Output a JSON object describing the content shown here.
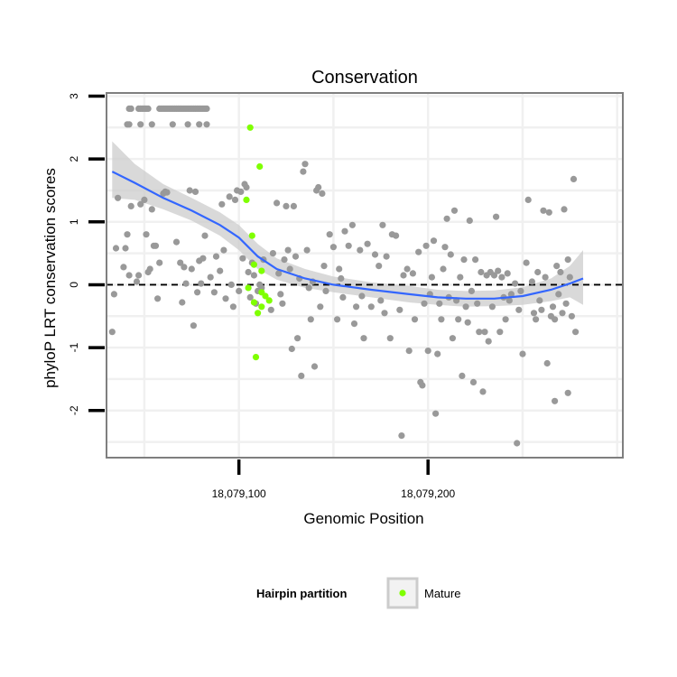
{
  "chart_data": {
    "type": "scatter",
    "title": "Conservation",
    "xlabel": "Genomic Position",
    "ylabel": "phyloP LRT conservation scores",
    "xlim": [
      18079030,
      18079303
    ],
    "ylim": [
      -2.75,
      3.05
    ],
    "x_ticks": [
      {
        "value": 18079100,
        "label": "18,079,100"
      },
      {
        "value": 18079200,
        "label": "18,079,200"
      }
    ],
    "y_ticks": [
      {
        "value": 3,
        "label": "3"
      },
      {
        "value": 2,
        "label": "2"
      },
      {
        "value": 1,
        "label": "1"
      },
      {
        "value": 0,
        "label": "0"
      },
      {
        "value": -1,
        "label": "-1"
      },
      {
        "value": -2,
        "label": "-2"
      }
    ],
    "reference_line": {
      "y": 0,
      "style": "dashed"
    },
    "colors": {
      "other": "#999999",
      "mature": "#7fff00",
      "smooth": "#3366ff",
      "ribbon": "#cccccc"
    },
    "legend": {
      "title": "Hairpin partition",
      "entries": [
        {
          "label": "Mature",
          "color": "#7fff00"
        }
      ]
    },
    "series": [
      {
        "name": "Other",
        "color": "#999999",
        "points": [
          [
            18079042,
            2.8
          ],
          [
            18079043,
            2.8
          ],
          [
            18079047,
            2.8
          ],
          [
            18079048,
            2.8
          ],
          [
            18079049,
            2.8
          ],
          [
            18079050,
            2.8
          ],
          [
            18079051,
            2.8
          ],
          [
            18079052,
            2.8
          ],
          [
            18079058,
            2.8
          ],
          [
            18079059,
            2.8
          ],
          [
            18079060,
            2.8
          ],
          [
            18079061,
            2.8
          ],
          [
            18079062,
            2.8
          ],
          [
            18079063,
            2.8
          ],
          [
            18079064,
            2.8
          ],
          [
            18079065,
            2.8
          ],
          [
            18079066,
            2.8
          ],
          [
            18079067,
            2.8
          ],
          [
            18079068,
            2.8
          ],
          [
            18079069,
            2.8
          ],
          [
            18079070,
            2.8
          ],
          [
            18079071,
            2.8
          ],
          [
            18079072,
            2.8
          ],
          [
            18079073,
            2.8
          ],
          [
            18079074,
            2.8
          ],
          [
            18079075,
            2.8
          ],
          [
            18079076,
            2.8
          ],
          [
            18079077,
            2.8
          ],
          [
            18079078,
            2.8
          ],
          [
            18079079,
            2.8
          ],
          [
            18079080,
            2.8
          ],
          [
            18079081,
            2.8
          ],
          [
            18079082,
            2.8
          ],
          [
            18079083,
            2.8
          ],
          [
            18079041,
            2.55
          ],
          [
            18079042,
            2.55
          ],
          [
            18079048,
            2.55
          ],
          [
            18079054,
            2.55
          ],
          [
            18079065,
            2.55
          ],
          [
            18079073,
            2.55
          ],
          [
            18079079,
            2.55
          ],
          [
            18079083,
            2.55
          ],
          [
            18079033,
            -0.75
          ],
          [
            18079034,
            -0.15
          ],
          [
            18079035,
            0.58
          ],
          [
            18079036,
            1.38
          ],
          [
            18079039,
            0.28
          ],
          [
            18079040,
            0.58
          ],
          [
            18079041,
            0.8
          ],
          [
            18079042,
            0.15
          ],
          [
            18079043,
            1.25
          ],
          [
            18079046,
            0.05
          ],
          [
            18079047,
            0.15
          ],
          [
            18079048,
            1.28
          ],
          [
            18079050,
            1.35
          ],
          [
            18079051,
            0.8
          ],
          [
            18079052,
            0.2
          ],
          [
            18079053,
            0.25
          ],
          [
            18079054,
            1.2
          ],
          [
            18079055,
            0.62
          ],
          [
            18079056,
            0.62
          ],
          [
            18079057,
            -0.22
          ],
          [
            18079058,
            0.35
          ],
          [
            18079060,
            1.45
          ],
          [
            18079061,
            1.48
          ],
          [
            18079062,
            1.47
          ],
          [
            18079067,
            0.68
          ],
          [
            18079069,
            0.35
          ],
          [
            18079070,
            -0.28
          ],
          [
            18079071,
            0.28
          ],
          [
            18079072,
            0.02
          ],
          [
            18079074,
            1.5
          ],
          [
            18079075,
            0.25
          ],
          [
            18079076,
            -0.65
          ],
          [
            18079077,
            1.48
          ],
          [
            18079078,
            -0.12
          ],
          [
            18079079,
            0.38
          ],
          [
            18079080,
            0.02
          ],
          [
            18079081,
            0.42
          ],
          [
            18079082,
            0.78
          ],
          [
            18079085,
            0.12
          ],
          [
            18079087,
            -0.12
          ],
          [
            18079088,
            0.45
          ],
          [
            18079090,
            0.22
          ],
          [
            18079091,
            1.28
          ],
          [
            18079092,
            0.55
          ],
          [
            18079093,
            -0.22
          ],
          [
            18079095,
            1.4
          ],
          [
            18079096,
            0.0
          ],
          [
            18079097,
            -0.35
          ],
          [
            18079098,
            1.35
          ],
          [
            18079099,
            1.5
          ],
          [
            18079100,
            -0.1
          ],
          [
            18079101,
            1.48
          ],
          [
            18079102,
            0.42
          ],
          [
            18079103,
            1.6
          ],
          [
            18079104,
            1.55
          ],
          [
            18079105,
            0.2
          ],
          [
            18079106,
            -0.2
          ],
          [
            18079107,
            0.35
          ],
          [
            18079108,
            0.15
          ],
          [
            18079109,
            -0.3
          ],
          [
            18079110,
            -0.1
          ],
          [
            18079111,
            0.0
          ],
          [
            18079112,
            -0.05
          ],
          [
            18079113,
            0.4
          ],
          [
            18079117,
            -0.4
          ],
          [
            18079118,
            0.5
          ],
          [
            18079120,
            1.3
          ],
          [
            18079121,
            0.18
          ],
          [
            18079122,
            -0.15
          ],
          [
            18079123,
            -0.3
          ],
          [
            18079124,
            0.4
          ],
          [
            18079125,
            1.25
          ],
          [
            18079126,
            0.55
          ],
          [
            18079127,
            0.25
          ],
          [
            18079128,
            -1.02
          ],
          [
            18079129,
            1.25
          ],
          [
            18079130,
            0.45
          ],
          [
            18079131,
            -0.85
          ],
          [
            18079132,
            0.1
          ],
          [
            18079133,
            -1.45
          ],
          [
            18079134,
            1.8
          ],
          [
            18079135,
            1.92
          ],
          [
            18079136,
            0.55
          ],
          [
            18079137,
            -0.05
          ],
          [
            18079138,
            -0.55
          ],
          [
            18079139,
            0.05
          ],
          [
            18079140,
            -1.3
          ],
          [
            18079141,
            1.5
          ],
          [
            18079142,
            1.55
          ],
          [
            18079143,
            -0.35
          ],
          [
            18079144,
            1.45
          ],
          [
            18079145,
            0.3
          ],
          [
            18079146,
            -0.1
          ],
          [
            18079148,
            0.8
          ],
          [
            18079150,
            0.6
          ],
          [
            18079152,
            -0.55
          ],
          [
            18079153,
            0.25
          ],
          [
            18079154,
            0.1
          ],
          [
            18079155,
            -0.2
          ],
          [
            18079156,
            0.85
          ],
          [
            18079158,
            0.62
          ],
          [
            18079160,
            0.95
          ],
          [
            18079161,
            -0.62
          ],
          [
            18079162,
            -0.35
          ],
          [
            18079164,
            0.55
          ],
          [
            18079165,
            -0.18
          ],
          [
            18079166,
            -0.85
          ],
          [
            18079168,
            0.65
          ],
          [
            18079170,
            -0.35
          ],
          [
            18079172,
            0.48
          ],
          [
            18079174,
            0.3
          ],
          [
            18079175,
            -0.25
          ],
          [
            18079176,
            0.95
          ],
          [
            18079177,
            -0.45
          ],
          [
            18079178,
            0.45
          ],
          [
            18079180,
            -0.85
          ],
          [
            18079181,
            0.8
          ],
          [
            18079183,
            0.78
          ],
          [
            18079185,
            -0.4
          ],
          [
            18079186,
            -2.4
          ],
          [
            18079187,
            0.15
          ],
          [
            18079189,
            0.25
          ],
          [
            18079190,
            -1.05
          ],
          [
            18079192,
            0.18
          ],
          [
            18079193,
            -0.55
          ],
          [
            18079195,
            0.52
          ],
          [
            18079196,
            -1.55
          ],
          [
            18079197,
            -1.6
          ],
          [
            18079198,
            -0.3
          ],
          [
            18079199,
            0.62
          ],
          [
            18079200,
            -1.05
          ],
          [
            18079201,
            -0.15
          ],
          [
            18079202,
            0.12
          ],
          [
            18079203,
            0.7
          ],
          [
            18079204,
            -2.05
          ],
          [
            18079205,
            -1.1
          ],
          [
            18079206,
            -0.3
          ],
          [
            18079207,
            -0.55
          ],
          [
            18079208,
            0.25
          ],
          [
            18079209,
            0.6
          ],
          [
            18079210,
            1.05
          ],
          [
            18079211,
            -0.2
          ],
          [
            18079212,
            0.48
          ],
          [
            18079213,
            -0.85
          ],
          [
            18079214,
            1.18
          ],
          [
            18079215,
            -0.25
          ],
          [
            18079216,
            -0.55
          ],
          [
            18079217,
            0.12
          ],
          [
            18079218,
            -1.45
          ],
          [
            18079219,
            0.4
          ],
          [
            18079220,
            -0.35
          ],
          [
            18079221,
            -0.6
          ],
          [
            18079222,
            1.02
          ],
          [
            18079223,
            -0.1
          ],
          [
            18079224,
            -1.55
          ],
          [
            18079225,
            0.4
          ],
          [
            18079226,
            -0.3
          ],
          [
            18079227,
            -0.75
          ],
          [
            18079228,
            0.2
          ],
          [
            18079229,
            -1.7
          ],
          [
            18079230,
            -0.75
          ],
          [
            18079231,
            0.15
          ],
          [
            18079232,
            -0.9
          ],
          [
            18079233,
            0.2
          ],
          [
            18079234,
            -0.35
          ],
          [
            18079235,
            0.15
          ],
          [
            18079236,
            1.08
          ],
          [
            18079237,
            0.22
          ],
          [
            18079238,
            -0.75
          ],
          [
            18079239,
            0.12
          ],
          [
            18079240,
            -0.2
          ],
          [
            18079241,
            -0.55
          ],
          [
            18079242,
            0.18
          ],
          [
            18079243,
            -0.25
          ],
          [
            18079244,
            -0.15
          ],
          [
            18079246,
            0.02
          ],
          [
            18079248,
            -0.4
          ],
          [
            18079249,
            -0.1
          ],
          [
            18079250,
            -1.1
          ],
          [
            18079252,
            0.35
          ],
          [
            18079253,
            1.35
          ],
          [
            18079255,
            0.05
          ],
          [
            18079256,
            -0.45
          ],
          [
            18079257,
            -0.55
          ],
          [
            18079258,
            0.2
          ],
          [
            18079259,
            -0.25
          ],
          [
            18079260,
            -0.4
          ],
          [
            18079261,
            1.18
          ],
          [
            18079262,
            0.12
          ],
          [
            18079263,
            -1.25
          ],
          [
            18079264,
            1.15
          ],
          [
            18079265,
            -0.5
          ],
          [
            18079266,
            -0.35
          ],
          [
            18079267,
            -0.55
          ],
          [
            18079268,
            0.3
          ],
          [
            18079269,
            -0.15
          ],
          [
            18079270,
            0.2
          ],
          [
            18079271,
            -0.45
          ],
          [
            18079272,
            1.2
          ],
          [
            18079273,
            -0.3
          ],
          [
            18079274,
            0.4
          ],
          [
            18079275,
            0.12
          ],
          [
            18079276,
            -0.5
          ],
          [
            18079277,
            1.68
          ],
          [
            18079267,
            -1.85
          ],
          [
            18079274,
            -1.72
          ],
          [
            18079278,
            -0.75
          ],
          [
            18079247,
            -2.52
          ]
        ]
      },
      {
        "name": "Mature",
        "color": "#7fff00",
        "points": [
          [
            18079106,
            2.5
          ],
          [
            18079111,
            1.88
          ],
          [
            18079104,
            1.35
          ],
          [
            18079107,
            0.78
          ],
          [
            18079108,
            0.32
          ],
          [
            18079112,
            0.22
          ],
          [
            18079105,
            -0.05
          ],
          [
            18079112,
            -0.12
          ],
          [
            18079114,
            -0.18
          ],
          [
            18079116,
            -0.25
          ],
          [
            18079108,
            -0.28
          ],
          [
            18079112,
            -0.35
          ],
          [
            18079110,
            -0.45
          ],
          [
            18079109,
            -1.15
          ]
        ]
      }
    ],
    "smooth": {
      "x": [
        18079033,
        18079045,
        18079060,
        18079075,
        18079090,
        18079100,
        18079110,
        18079120,
        18079135,
        18079150,
        18079170,
        18079190,
        18079205,
        18079220,
        18079235,
        18079250,
        18079265,
        18079275,
        18079282
      ],
      "y": [
        1.8,
        1.62,
        1.38,
        1.18,
        0.95,
        0.75,
        0.45,
        0.25,
        0.1,
        0.0,
        -0.08,
        -0.15,
        -0.2,
        -0.22,
        -0.22,
        -0.18,
        -0.08,
        0.02,
        0.1
      ],
      "lower": [
        1.38,
        1.35,
        1.2,
        1.02,
        0.78,
        0.55,
        0.25,
        0.08,
        -0.05,
        -0.12,
        -0.2,
        -0.28,
        -0.32,
        -0.35,
        -0.34,
        -0.32,
        -0.26,
        -0.2,
        -0.32
      ],
      "upper": [
        2.28,
        1.92,
        1.6,
        1.38,
        1.15,
        0.95,
        0.65,
        0.42,
        0.25,
        0.13,
        0.04,
        -0.02,
        -0.08,
        -0.1,
        -0.09,
        -0.04,
        0.1,
        0.3,
        0.55
      ]
    }
  }
}
